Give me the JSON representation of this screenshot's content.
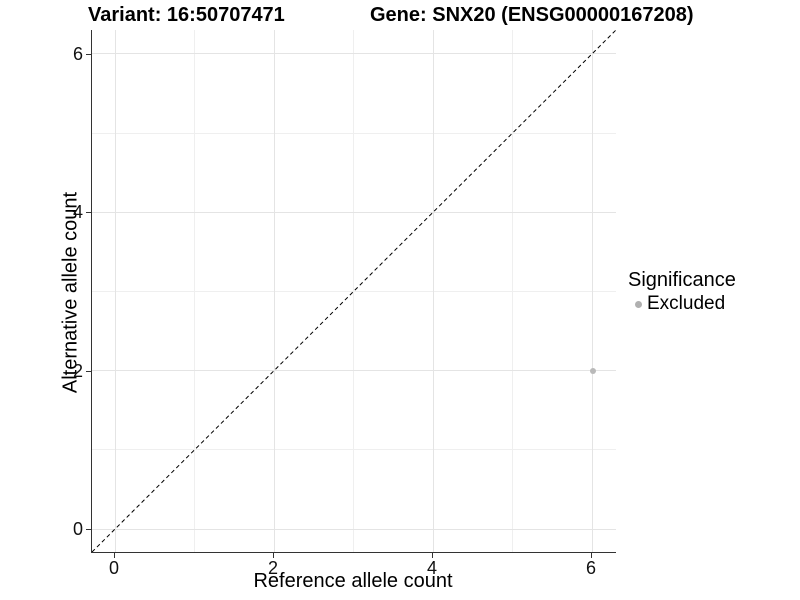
{
  "titles": {
    "left": "Variant: 16:50707471",
    "right": "Gene: SNX20 (ENSG00000167208)"
  },
  "chart_data": {
    "type": "scatter",
    "xlabel": "Reference allele count",
    "ylabel": "Alternative allele count",
    "xlim": [
      -0.3,
      6.3
    ],
    "ylim": [
      -0.3,
      6.3
    ],
    "x_ticks": [
      0,
      2,
      4,
      6
    ],
    "y_ticks": [
      0,
      2,
      4,
      6
    ],
    "minor_gridlines": [
      1,
      3,
      5
    ],
    "grid": "on",
    "reference_line": {
      "style": "dashed",
      "equation": "y = x",
      "color": "#000000"
    },
    "series": [
      {
        "name": "Excluded",
        "color": "#b9b9b9",
        "points": [
          {
            "x": 6,
            "y": 2
          }
        ]
      }
    ],
    "legend": {
      "position": "right",
      "title": "Significance",
      "entries": [
        {
          "label": "Excluded",
          "color": "#b0b0b0"
        }
      ]
    },
    "colors": {
      "major_grid": "#e4e4e4",
      "minor_grid": "#efefef",
      "axis_line": "#333333",
      "point": "#b9b9b9"
    }
  }
}
